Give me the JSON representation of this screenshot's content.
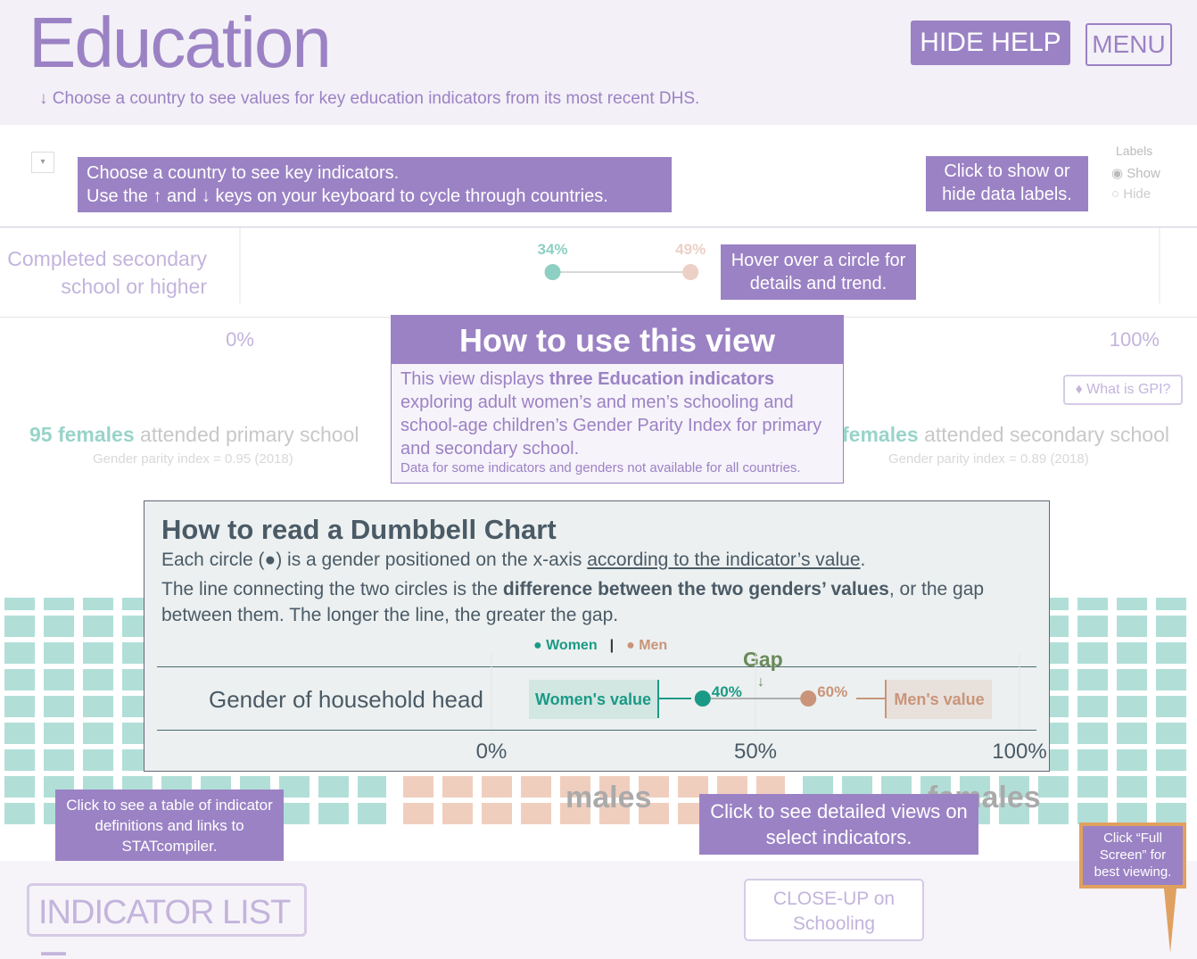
{
  "header": {
    "title": "Education",
    "subtitle": "↓ Choose a country to see values for key education indicators from its most recent DHS.",
    "hide_help": "HIDE HELP",
    "menu": "MENU"
  },
  "country_tip": {
    "line1": "Choose a country to see key indicators.",
    "line2": "Use the ↑ and ↓ keys on your keyboard to cycle through countries."
  },
  "labels": {
    "title": "Labels",
    "show": "Show",
    "hide": "Hide",
    "tip": "Click to show or hide data labels."
  },
  "indicator": {
    "label": "Completed secondary school or higher",
    "women": {
      "value": 34,
      "label": "34%"
    },
    "men": {
      "value": 49,
      "label": "49%"
    },
    "axis": [
      {
        "value": 0,
        "label": "0%"
      },
      {
        "value": 100,
        "label": "100%"
      }
    ],
    "hover_tip": "Hover over a circle for details and trend."
  },
  "help": {
    "title": "How to use this view",
    "body": [
      "This view displays ",
      "three Education indicators",
      " exploring adult women’s and men’s schooling and school-age children’s Gender Parity Index for primary and secondary school."
    ],
    "note": "Data for some indicators and genders not available for all countries."
  },
  "gpi": {
    "button": "What is GPI?",
    "primary": {
      "count": "95 females",
      "text": "attended primary school",
      "index": "Gender parity index = 0.95 (2018)"
    },
    "secondary": {
      "count": "females",
      "text": "attended secondary school",
      "index": "Gender parity index = 0.89 (2018)"
    },
    "middle_label": "males",
    "right_label": "females"
  },
  "dumbbell_help": {
    "title": "How to read a Dumbbell Chart",
    "line1": [
      "Each circle (●) is a gender positioned on the x-axis ",
      "according to the indicator’s value",
      "."
    ],
    "line2": [
      "The line connecting the two circles is the ",
      "difference between the two genders’ values",
      ", or the gap between them. The longer the line, the greater the gap."
    ],
    "legend": [
      "Women",
      "Men"
    ],
    "row_label": "Gender of household head",
    "women_box": "Women's value",
    "men_box": "Men's value",
    "gap": "Gap",
    "women": {
      "value": 40,
      "label": "40%"
    },
    "men": {
      "value": 60,
      "label": "60%"
    },
    "axis": [
      {
        "value": 0,
        "label": "0%"
      },
      {
        "value": 50,
        "label": "50%"
      },
      {
        "value": 100,
        "label": "100%"
      }
    ]
  },
  "footer": {
    "indicator_tip": "Click to see a table of indicator definitions and links to STATcompiler.",
    "indicator_button": "INDICATOR LIST",
    "closeup_tip": "Click to see detailed views on select indicators.",
    "closeup_button": "CLOSE-UP on Schooling",
    "fullscreen_tip": "Click “Full Screen” for best viewing."
  }
}
